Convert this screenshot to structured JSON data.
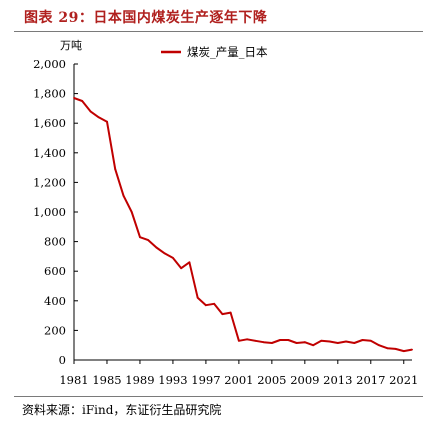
{
  "figure": {
    "title": "图表 29：日本国内煤炭生产逐年下降",
    "source": "资料来源：iFind，东证衍生品研究院"
  },
  "colors": {
    "title": "#b0201e",
    "series": "#c00000",
    "axis": "#000000",
    "rule": "#7a7a7a"
  },
  "chart_data": {
    "type": "line",
    "title": "",
    "xlabel": "",
    "ylabel": "万吨",
    "ylim": [
      0,
      2000
    ],
    "xlim": [
      1981,
      2022
    ],
    "yticks": [
      "0",
      "200",
      "400",
      "600",
      "800",
      "1,000",
      "1,200",
      "1,400",
      "1,600",
      "1,800",
      "2,000"
    ],
    "xticks": [
      "1981",
      "1985",
      "1989",
      "1993",
      "1997",
      "2001",
      "2005",
      "2009",
      "2013",
      "2017",
      "2021"
    ],
    "grid": false,
    "legend_position": "top-center",
    "series": [
      {
        "name": "煤炭_产量_日本",
        "color": "#c00000",
        "x": [
          1981,
          1982,
          1983,
          1984,
          1985,
          1986,
          1987,
          1988,
          1989,
          1990,
          1991,
          1992,
          1993,
          1994,
          1995,
          1996,
          1997,
          1998,
          1999,
          2000,
          2001,
          2002,
          2003,
          2004,
          2005,
          2006,
          2007,
          2008,
          2009,
          2010,
          2011,
          2012,
          2013,
          2014,
          2015,
          2016,
          2017,
          2018,
          2019,
          2020,
          2021,
          2022
        ],
        "values": [
          1770,
          1750,
          1680,
          1640,
          1610,
          1290,
          1110,
          1000,
          830,
          810,
          760,
          720,
          690,
          620,
          660,
          420,
          370,
          380,
          310,
          320,
          130,
          140,
          130,
          120,
          115,
          135,
          135,
          115,
          120,
          100,
          130,
          125,
          115,
          125,
          115,
          135,
          130,
          100,
          80,
          75,
          60,
          70
        ]
      }
    ]
  }
}
